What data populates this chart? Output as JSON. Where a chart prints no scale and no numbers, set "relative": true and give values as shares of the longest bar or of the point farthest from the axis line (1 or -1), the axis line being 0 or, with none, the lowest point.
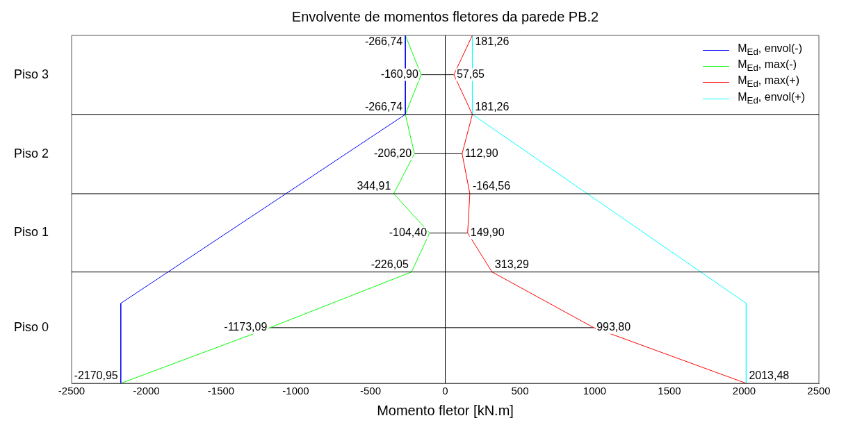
{
  "chart_data": {
    "type": "line",
    "title": "Envolvente de momentos fletores da parede PB.2",
    "xlabel": "Momento fletor [kN.m]",
    "xlim": [
      -2500,
      2500
    ],
    "xticks": [
      -2500,
      -2000,
      -1500,
      -1000,
      -500,
      0,
      500,
      1000,
      1500,
      2000,
      2500
    ],
    "relative": true,
    "grid": false,
    "legend": "top right",
    "marker": "none",
    "line_style": "solid",
    "series": [
      {
        "name": "M$_{Ed}$, envol(-)",
        "color": "#0000ff",
        "x": [
          -266.74,
          -266.74,
          -2170.95,
          -2170.95
        ],
        "values": [
          1,
          0.773,
          0.23,
          0
        ]
      },
      {
        "name": "M$_{Ed}$, max(-)",
        "color": "#00ff00",
        "x": [
          -266.74,
          -160.9,
          -266.74,
          -206.2,
          -344.91,
          -104.4,
          -226.05,
          -1173.09,
          -2170.95
        ],
        "values": [
          1,
          0.887,
          0.773,
          0.66,
          0.545,
          0.432,
          0.32,
          0.16,
          0
        ]
      },
      {
        "name": "M$_{Ed}$, max(+)",
        "color": "#ff0000",
        "x": [
          181.26,
          57.65,
          181.26,
          112.9,
          164.56,
          149.9,
          313.29,
          993.8,
          2013.48
        ],
        "values": [
          1,
          0.887,
          0.773,
          0.66,
          0.545,
          0.432,
          0.32,
          0.16,
          0
        ]
      },
      {
        "name": "M$_{Ed}$, envol(+)",
        "color": "#00ffff",
        "x": [
          181.26,
          181.26,
          2013.48,
          2013.48
        ],
        "values": [
          1,
          0.773,
          0.23,
          0
        ]
      },
      {
        "color": "#000000",
        "x": [
          -160.9,
          57.65
        ],
        "values": [
          0.887,
          0.887
        ]
      },
      {
        "color": "#000000",
        "x": [
          -206.2,
          112.9
        ],
        "values": [
          0.66,
          0.66
        ]
      },
      {
        "color": "#000000",
        "x": [
          -104.4,
          149.9
        ],
        "values": [
          0.432,
          0.432
        ]
      },
      {
        "color": "#000000",
        "x": [
          -1173.09,
          993.8
        ],
        "values": [
          0.16,
          0.16
        ]
      }
    ],
    "ref_lines": [
      {
        "axis": "x",
        "value": 0,
        "color": "#000000"
      },
      {
        "axis": "y",
        "value": 0.32,
        "color": "#000000"
      },
      {
        "axis": "y",
        "value": 0.545,
        "color": "#000000"
      },
      {
        "axis": "y",
        "value": 0.773,
        "color": "#000000"
      }
    ],
    "annotations": [
      "Piso 3",
      "Piso 2",
      "Piso 1",
      "Piso 0",
      {
        "text": "-266,74",
        "x": -266.74,
        "y": 1
      },
      {
        "text": "181,26",
        "x": 181.26,
        "y": 1
      },
      {
        "text": "-160,90",
        "x": -160.9,
        "y": 0.887
      },
      {
        "text": "57,65",
        "x": 57.65,
        "y": 0.887
      },
      {
        "text": "-266,74",
        "x": -266.74,
        "y": 0.773
      },
      {
        "text": "181,26",
        "x": 181.26,
        "y": 0.773
      },
      {
        "text": "-206,20",
        "x": -206.2,
        "y": 0.66
      },
      {
        "text": "112,90",
        "x": 112.9,
        "y": 0.66
      },
      {
        "text": "344,91",
        "x": -344.91,
        "y": 0.545
      },
      {
        "text": "-164,56",
        "x": 164.56,
        "y": 0.545
      },
      {
        "text": "-104,40",
        "x": -104.4,
        "y": 0.432
      },
      {
        "text": "149,90",
        "x": 149.9,
        "y": 0.432
      },
      {
        "text": "-226,05",
        "x": -226.05,
        "y": 0.32
      },
      {
        "text": "313,29",
        "x": 313.29,
        "y": 0.32
      },
      {
        "text": "-1173,09",
        "x": -1173.09,
        "y": 0.16
      },
      {
        "text": "993,80",
        "x": 993.8,
        "y": 0.16
      },
      {
        "text": "-2170,95",
        "x": -2170.95,
        "y": 0
      },
      {
        "text": "2013,48",
        "x": 2013.48,
        "y": 0
      }
    ]
  }
}
